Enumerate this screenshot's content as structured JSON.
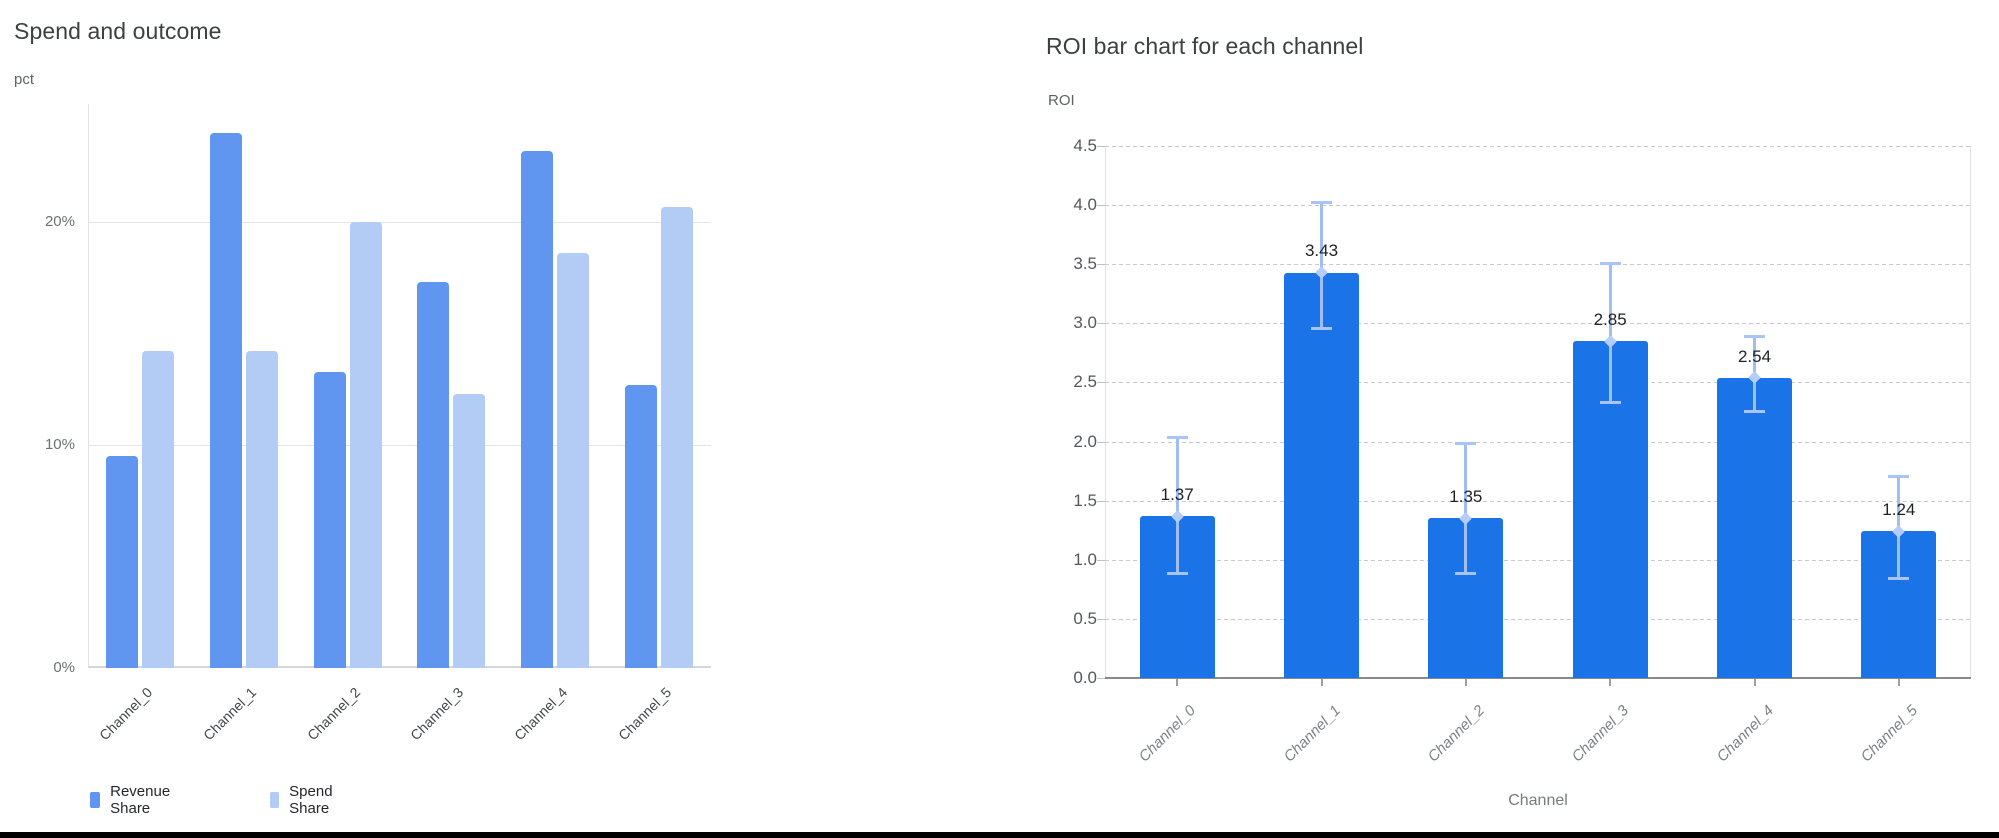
{
  "page": {
    "background": "#ffffff",
    "bottom_edge_color": "#000000"
  },
  "chart_data": [
    {
      "type": "bar",
      "title": "Spend and outcome",
      "ylabel": "pct",
      "xlabel": "",
      "categories": [
        "Channel_0",
        "Channel_1",
        "Channel_2",
        "Channel_3",
        "Channel_4",
        "Channel_5"
      ],
      "series": [
        {
          "name": "Revenue Share",
          "color": "#6196f0",
          "values": [
            9.5,
            24.0,
            13.3,
            17.3,
            23.2,
            12.7
          ]
        },
        {
          "name": "Spend Share",
          "color": "#b3ccf6",
          "values": [
            14.2,
            14.2,
            20.0,
            12.3,
            18.6,
            20.7
          ]
        }
      ],
      "y_ticks": [
        0,
        10,
        20
      ],
      "y_tick_labels": [
        "0%",
        "10%",
        "20%"
      ],
      "ylim": [
        0,
        25.3
      ],
      "grid": "horizontal-solid",
      "legend_position": "bottom-left",
      "value_unit": "percent"
    },
    {
      "type": "bar",
      "title": "ROI bar chart for each channel",
      "ylabel": "ROI",
      "xlabel": "Channel",
      "categories": [
        "Channel_0",
        "Channel_1",
        "Channel_2",
        "Channel_3",
        "Channel_4",
        "Channel_5"
      ],
      "values": [
        1.37,
        3.43,
        1.35,
        2.85,
        2.54,
        1.24
      ],
      "data_labels": [
        "1.37",
        "3.43",
        "1.35",
        "2.85",
        "2.54",
        "1.24"
      ],
      "error_bars": {
        "low": [
          0.88,
          2.95,
          0.88,
          2.33,
          2.25,
          0.84
        ],
        "high": [
          2.04,
          4.03,
          1.99,
          3.51,
          2.89,
          1.71
        ]
      },
      "y_ticks": [
        0.0,
        0.5,
        1.0,
        1.5,
        2.0,
        2.5,
        3.0,
        3.5,
        4.0,
        4.5
      ],
      "ylim": [
        0,
        4.5
      ],
      "grid": "horizontal-dashed",
      "bar_color": "#1b73e8",
      "error_color": "#9fbef6",
      "legend_position": "none"
    }
  ]
}
